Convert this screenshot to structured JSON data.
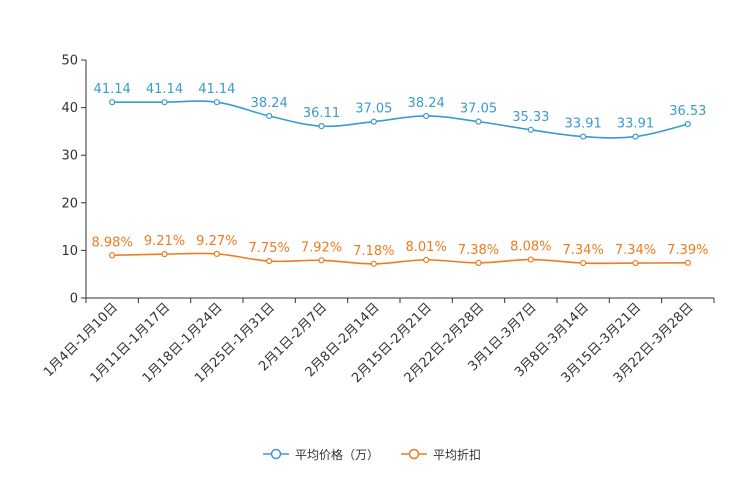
{
  "chart_data": {
    "type": "line",
    "title": "",
    "xlabel": "",
    "ylabel": "",
    "ylim": [
      0,
      50
    ],
    "yticks": [
      0,
      10,
      20,
      30,
      40,
      50
    ],
    "categories": [
      "1月4日-1月10日",
      "1月11日-1月17日",
      "1月18日-1月24日",
      "1月25日-1月31日",
      "2月1日-2月7日",
      "2月8日-2月14日",
      "2月15日-2月21日",
      "2月22日-2月28日",
      "3月1日-3月7日",
      "3月8日-3月14日",
      "3月15日-3月21日",
      "3月22日-3月28日"
    ],
    "series": [
      {
        "name": "平均价格（万）",
        "color": "#3b9bd0",
        "values": [
          41.14,
          41.14,
          41.14,
          38.24,
          36.11,
          37.05,
          38.24,
          37.05,
          35.33,
          33.91,
          33.91,
          36.53
        ],
        "labels": [
          "41.14",
          "41.14",
          "41.14",
          "38.24",
          "36.11",
          "37.05",
          "38.24",
          "37.05",
          "35.33",
          "33.91",
          "33.91",
          "36.53"
        ]
      },
      {
        "name": "平均折扣",
        "color": "#f07b1d",
        "values": [
          8.98,
          9.21,
          9.27,
          7.75,
          7.92,
          7.18,
          8.01,
          7.38,
          8.08,
          7.34,
          7.34,
          7.39
        ],
        "labels": [
          "8.98%",
          "9.21%",
          "9.27%",
          "7.75%",
          "7.92%",
          "7.18%",
          "8.01%",
          "7.38%",
          "8.08%",
          "7.34%",
          "7.34%",
          "7.39%"
        ]
      }
    ],
    "legend_position": "bottom-center",
    "grid": false
  }
}
